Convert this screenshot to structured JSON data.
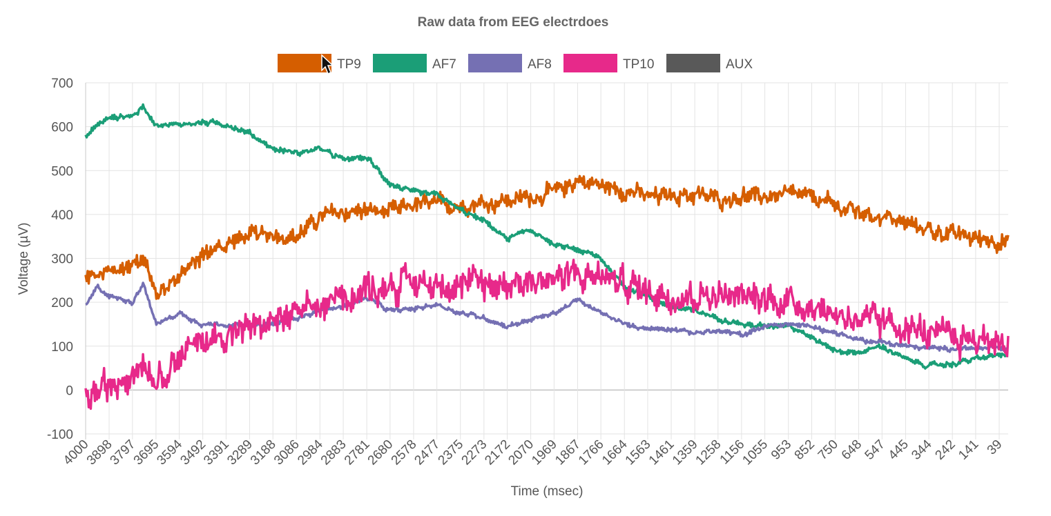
{
  "chart_data": {
    "type": "line",
    "title": "Raw data from EEG electrdoes",
    "xlabel": "Time (msec)",
    "ylabel": "Voltage (µV)",
    "ylim": [
      -100,
      700
    ],
    "yticks": [
      700,
      600,
      500,
      400,
      300,
      200,
      100,
      0,
      -100
    ],
    "xlim": [
      4000,
      0
    ],
    "xticks": [
      4000,
      3898,
      3797,
      3695,
      3594,
      3492,
      3391,
      3289,
      3188,
      3086,
      2984,
      2883,
      2781,
      2680,
      2578,
      2477,
      2375,
      2273,
      2172,
      2070,
      1969,
      1867,
      1766,
      1664,
      1563,
      1461,
      1359,
      1258,
      1156,
      1055,
      953,
      852,
      750,
      648,
      547,
      445,
      344,
      242,
      141,
      39
    ],
    "grid": true,
    "legend_position": "top",
    "series": [
      {
        "name": "TP9",
        "color": "#d55e00",
        "noise": 22,
        "x": [
          4000,
          3898,
          3797,
          3750,
          3695,
          3594,
          3492,
          3391,
          3289,
          3188,
          3086,
          2984,
          2883,
          2781,
          2680,
          2578,
          2477,
          2375,
          2273,
          2172,
          2070,
          1969,
          1867,
          1766,
          1664,
          1563,
          1461,
          1359,
          1258,
          1156,
          1055,
          953,
          852,
          750,
          648,
          547,
          445,
          344,
          242,
          141,
          39,
          0
        ],
        "y": [
          255,
          265,
          285,
          310,
          215,
          265,
          305,
          335,
          350,
          355,
          350,
          395,
          405,
          410,
          405,
          420,
          425,
          420,
          425,
          430,
          440,
          450,
          480,
          465,
          455,
          440,
          445,
          445,
          435,
          440,
          440,
          445,
          440,
          420,
          405,
          395,
          380,
          365,
          355,
          345,
          340,
          340
        ]
      },
      {
        "name": "AF7",
        "color": "#1b9e77",
        "noise": 7,
        "x": [
          4000,
          3950,
          3898,
          3797,
          3750,
          3695,
          3594,
          3492,
          3391,
          3289,
          3188,
          3086,
          2984,
          2883,
          2781,
          2680,
          2578,
          2477,
          2375,
          2273,
          2172,
          2070,
          1969,
          1867,
          1766,
          1664,
          1563,
          1461,
          1359,
          1258,
          1156,
          1055,
          953,
          852,
          750,
          648,
          547,
          445,
          344,
          242,
          141,
          39,
          0
        ],
        "y": [
          575,
          605,
          620,
          625,
          645,
          605,
          605,
          610,
          605,
          585,
          550,
          540,
          550,
          525,
          530,
          470,
          450,
          445,
          410,
          385,
          345,
          365,
          330,
          320,
          300,
          235,
          215,
          190,
          180,
          165,
          150,
          145,
          150,
          120,
          90,
          85,
          100,
          70,
          55,
          60,
          70,
          80,
          75
        ]
      },
      {
        "name": "AF8",
        "color": "#7570b3",
        "noise": 6,
        "x": [
          4000,
          3950,
          3898,
          3797,
          3750,
          3695,
          3594,
          3492,
          3391,
          3289,
          3188,
          3086,
          2984,
          2883,
          2781,
          2680,
          2578,
          2477,
          2375,
          2273,
          2172,
          2070,
          1969,
          1867,
          1766,
          1664,
          1563,
          1461,
          1359,
          1258,
          1156,
          1055,
          953,
          852,
          750,
          648,
          547,
          445,
          344,
          242,
          141,
          39,
          0
        ],
        "y": [
          190,
          235,
          215,
          200,
          245,
          150,
          175,
          150,
          150,
          145,
          150,
          165,
          180,
          190,
          210,
          180,
          185,
          195,
          175,
          165,
          145,
          160,
          175,
          205,
          175,
          150,
          140,
          140,
          130,
          135,
          125,
          145,
          150,
          145,
          130,
          115,
          110,
          100,
          95,
          95,
          95,
          95,
          90
        ]
      },
      {
        "name": "TP10",
        "color": "#e7298a",
        "noise": 38,
        "x": [
          4000,
          3898,
          3797,
          3750,
          3695,
          3594,
          3492,
          3391,
          3289,
          3188,
          3086,
          2984,
          2883,
          2781,
          2680,
          2578,
          2477,
          2375,
          2273,
          2172,
          2070,
          1969,
          1867,
          1766,
          1664,
          1563,
          1461,
          1359,
          1258,
          1156,
          1055,
          953,
          852,
          750,
          648,
          547,
          445,
          344,
          242,
          141,
          39,
          0
        ],
        "y": [
          -20,
          10,
          40,
          70,
          20,
          80,
          110,
          130,
          140,
          155,
          170,
          190,
          210,
          230,
          240,
          245,
          245,
          245,
          240,
          245,
          250,
          255,
          260,
          265,
          240,
          225,
          215,
          215,
          215,
          210,
          210,
          200,
          190,
          175,
          160,
          150,
          140,
          130,
          120,
          115,
          110,
          105
        ]
      },
      {
        "name": "AUX",
        "color": "#595959",
        "x": [],
        "y": []
      }
    ]
  }
}
